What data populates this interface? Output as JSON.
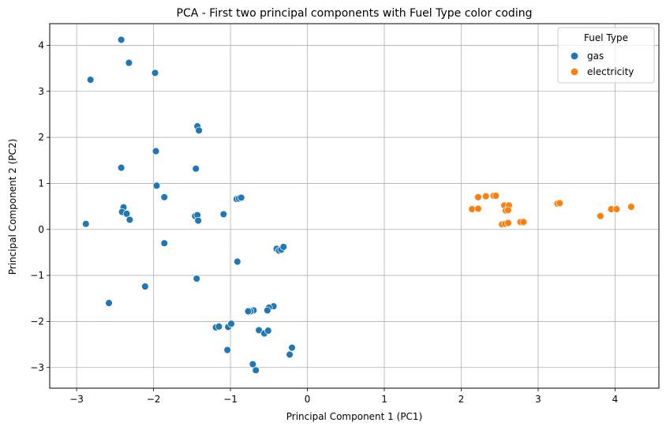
{
  "chart_data": {
    "type": "scatter",
    "title": "PCA - First two principal components with Fuel Type color coding",
    "xlabel": "Principal Component 1 (PC1)",
    "ylabel": "Principal Component 2 (PC2)",
    "xlim": [
      -3.35,
      4.57
    ],
    "ylim": [
      -3.45,
      4.47
    ],
    "xticks": [
      -3,
      -2,
      -1,
      0,
      1,
      2,
      3,
      4
    ],
    "yticks": [
      -3,
      -2,
      -1,
      0,
      1,
      2,
      3,
      4
    ],
    "grid": true,
    "legend": {
      "title": "Fuel Type",
      "placement": "top-right"
    },
    "series": [
      {
        "name": "gas",
        "color": "#1f77b4",
        "points": [
          [
            -2.42,
            4.12
          ],
          [
            -2.32,
            3.62
          ],
          [
            -2.82,
            3.25
          ],
          [
            -1.98,
            3.4
          ],
          [
            -1.43,
            2.24
          ],
          [
            -1.41,
            2.15
          ],
          [
            -1.97,
            1.7
          ],
          [
            -2.42,
            1.34
          ],
          [
            -1.45,
            1.32
          ],
          [
            -1.96,
            0.95
          ],
          [
            -1.86,
            0.7
          ],
          [
            -0.92,
            0.66
          ],
          [
            -0.89,
            0.67
          ],
          [
            -0.86,
            0.69
          ],
          [
            -2.88,
            0.12
          ],
          [
            -2.39,
            0.48
          ],
          [
            -2.41,
            0.38
          ],
          [
            -2.35,
            0.34
          ],
          [
            -2.31,
            0.21
          ],
          [
            -1.46,
            0.29
          ],
          [
            -1.43,
            0.31
          ],
          [
            -1.42,
            0.19
          ],
          [
            -1.09,
            0.33
          ],
          [
            -1.86,
            -0.3
          ],
          [
            -0.91,
            -0.7
          ],
          [
            -0.4,
            -0.42
          ],
          [
            -0.37,
            -0.46
          ],
          [
            -0.34,
            -0.44
          ],
          [
            -0.31,
            -0.38
          ],
          [
            -1.44,
            -1.07
          ],
          [
            -2.11,
            -1.24
          ],
          [
            -2.58,
            -1.6
          ],
          [
            -0.44,
            -1.67
          ],
          [
            -0.5,
            -1.7
          ],
          [
            -0.52,
            -1.76
          ],
          [
            -0.7,
            -1.76
          ],
          [
            -0.74,
            -1.78
          ],
          [
            -0.77,
            -1.78
          ],
          [
            -1.19,
            -2.13
          ],
          [
            -1.15,
            -2.11
          ],
          [
            -1.03,
            -2.12
          ],
          [
            -0.99,
            -2.05
          ],
          [
            -0.63,
            -2.19
          ],
          [
            -0.56,
            -2.26
          ],
          [
            -0.51,
            -2.2
          ],
          [
            -1.04,
            -2.62
          ],
          [
            -0.2,
            -2.57
          ],
          [
            -0.23,
            -2.72
          ],
          [
            -0.71,
            -2.93
          ],
          [
            -0.67,
            -3.06
          ]
        ]
      },
      {
        "name": "electricity",
        "color": "#ff7f0e",
        "points": [
          [
            2.14,
            0.44
          ],
          [
            2.22,
            0.45
          ],
          [
            2.22,
            0.7
          ],
          [
            2.32,
            0.72
          ],
          [
            2.42,
            0.73
          ],
          [
            2.45,
            0.73
          ],
          [
            2.56,
            0.52
          ],
          [
            2.58,
            0.41
          ],
          [
            2.62,
            0.52
          ],
          [
            2.61,
            0.42
          ],
          [
            2.53,
            0.11
          ],
          [
            2.57,
            0.12
          ],
          [
            2.61,
            0.14
          ],
          [
            2.77,
            0.16
          ],
          [
            2.81,
            0.16
          ],
          [
            3.25,
            0.56
          ],
          [
            3.28,
            0.57
          ],
          [
            3.81,
            0.29
          ],
          [
            3.95,
            0.44
          ],
          [
            4.02,
            0.44
          ],
          [
            4.21,
            0.49
          ]
        ]
      }
    ]
  }
}
